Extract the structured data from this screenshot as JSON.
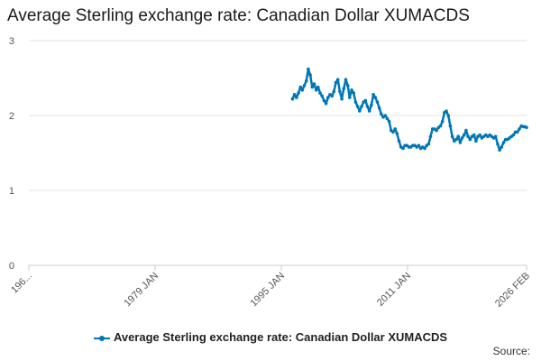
{
  "chart_data": {
    "type": "line",
    "title": "Average Sterling exchange rate: Canadian Dollar XUMACDS",
    "xlabel": "",
    "ylabel": "",
    "ylim": [
      0,
      3
    ],
    "xlim": [
      "1963-01",
      "2026-02"
    ],
    "y_ticks": [
      0,
      1,
      2,
      3
    ],
    "x_ticks": [
      {
        "label": "196...",
        "date": "1963-01"
      },
      {
        "label": "1979 JAN",
        "date": "1979-01"
      },
      {
        "label": "1995 JAN",
        "date": "1995-01"
      },
      {
        "label": "2011 JAN",
        "date": "2011-01"
      },
      {
        "label": "2026 FEB",
        "date": "2026-02"
      }
    ],
    "grid": "horizontal",
    "legend_position": "bottom",
    "color": "#0077b5",
    "series": [
      {
        "name": "Average Sterling exchange rate: Canadian Dollar XUMACDS",
        "points": [
          [
            "1996-06",
            2.22
          ],
          [
            "1996-09",
            2.28
          ],
          [
            "1996-12",
            2.24
          ],
          [
            "1997-03",
            2.3
          ],
          [
            "1997-06",
            2.38
          ],
          [
            "1997-09",
            2.34
          ],
          [
            "1997-12",
            2.4
          ],
          [
            "1998-03",
            2.46
          ],
          [
            "1998-06",
            2.62
          ],
          [
            "1998-09",
            2.54
          ],
          [
            "1998-12",
            2.38
          ],
          [
            "1999-03",
            2.42
          ],
          [
            "1999-06",
            2.34
          ],
          [
            "1999-09",
            2.38
          ],
          [
            "1999-12",
            2.3
          ],
          [
            "2000-03",
            2.26
          ],
          [
            "2000-06",
            2.2
          ],
          [
            "2000-09",
            2.16
          ],
          [
            "2000-12",
            2.24
          ],
          [
            "2001-03",
            2.28
          ],
          [
            "2001-06",
            2.26
          ],
          [
            "2001-09",
            2.32
          ],
          [
            "2001-12",
            2.44
          ],
          [
            "2002-03",
            2.48
          ],
          [
            "2002-06",
            2.32
          ],
          [
            "2002-09",
            2.22
          ],
          [
            "2002-12",
            2.36
          ],
          [
            "2003-03",
            2.48
          ],
          [
            "2003-06",
            2.4
          ],
          [
            "2003-09",
            2.24
          ],
          [
            "2003-12",
            2.34
          ],
          [
            "2004-03",
            2.3
          ],
          [
            "2004-06",
            2.18
          ],
          [
            "2004-09",
            2.12
          ],
          [
            "2004-12",
            2.06
          ],
          [
            "2005-03",
            2.12
          ],
          [
            "2005-06",
            2.18
          ],
          [
            "2005-09",
            2.2
          ],
          [
            "2005-12",
            2.12
          ],
          [
            "2006-03",
            2.06
          ],
          [
            "2006-06",
            2.14
          ],
          [
            "2006-09",
            2.28
          ],
          [
            "2006-12",
            2.24
          ],
          [
            "2007-03",
            2.18
          ],
          [
            "2007-06",
            2.1
          ],
          [
            "2007-09",
            2.02
          ],
          [
            "2007-12",
            1.98
          ],
          [
            "2008-03",
            2.0
          ],
          [
            "2008-06",
            1.96
          ],
          [
            "2008-09",
            1.92
          ],
          [
            "2008-12",
            1.8
          ],
          [
            "2009-03",
            1.78
          ],
          [
            "2009-06",
            1.82
          ],
          [
            "2009-09",
            1.76
          ],
          [
            "2009-12",
            1.66
          ],
          [
            "2010-03",
            1.58
          ],
          [
            "2010-06",
            1.56
          ],
          [
            "2010-09",
            1.6
          ],
          [
            "2010-12",
            1.6
          ],
          [
            "2011-03",
            1.58
          ],
          [
            "2011-06",
            1.58
          ],
          [
            "2011-09",
            1.6
          ],
          [
            "2011-12",
            1.6
          ],
          [
            "2012-03",
            1.58
          ],
          [
            "2012-06",
            1.6
          ],
          [
            "2012-09",
            1.56
          ],
          [
            "2012-12",
            1.58
          ],
          [
            "2013-03",
            1.56
          ],
          [
            "2013-06",
            1.6
          ],
          [
            "2013-09",
            1.62
          ],
          [
            "2013-12",
            1.72
          ],
          [
            "2014-03",
            1.82
          ],
          [
            "2014-06",
            1.82
          ],
          [
            "2014-09",
            1.8
          ],
          [
            "2014-12",
            1.84
          ],
          [
            "2015-03",
            1.86
          ],
          [
            "2015-06",
            1.92
          ],
          [
            "2015-09",
            2.04
          ],
          [
            "2015-12",
            2.06
          ],
          [
            "2016-03",
            2.0
          ],
          [
            "2016-06",
            1.86
          ],
          [
            "2016-09",
            1.72
          ],
          [
            "2016-12",
            1.66
          ],
          [
            "2017-03",
            1.68
          ],
          [
            "2017-06",
            1.72
          ],
          [
            "2017-09",
            1.64
          ],
          [
            "2017-12",
            1.7
          ],
          [
            "2018-03",
            1.74
          ],
          [
            "2018-06",
            1.8
          ],
          [
            "2018-09",
            1.72
          ],
          [
            "2018-12",
            1.68
          ],
          [
            "2019-03",
            1.72
          ],
          [
            "2019-06",
            1.74
          ],
          [
            "2019-09",
            1.66
          ],
          [
            "2019-12",
            1.72
          ],
          [
            "2020-03",
            1.74
          ],
          [
            "2020-06",
            1.7
          ],
          [
            "2020-09",
            1.72
          ],
          [
            "2020-12",
            1.74
          ],
          [
            "2021-03",
            1.72
          ],
          [
            "2021-06",
            1.74
          ],
          [
            "2021-09",
            1.72
          ],
          [
            "2021-12",
            1.7
          ],
          [
            "2022-03",
            1.72
          ],
          [
            "2022-06",
            1.62
          ],
          [
            "2022-09",
            1.54
          ],
          [
            "2022-12",
            1.58
          ],
          [
            "2023-03",
            1.64
          ],
          [
            "2023-06",
            1.68
          ],
          [
            "2023-09",
            1.68
          ],
          [
            "2023-12",
            1.7
          ],
          [
            "2024-03",
            1.72
          ],
          [
            "2024-06",
            1.74
          ],
          [
            "2024-09",
            1.78
          ],
          [
            "2024-12",
            1.78
          ],
          [
            "2025-03",
            1.82
          ],
          [
            "2025-06",
            1.86
          ],
          [
            "2025-09",
            1.85
          ],
          [
            "2025-12",
            1.85
          ],
          [
            "2026-02",
            1.84
          ]
        ]
      }
    ],
    "source_label": "Source:"
  }
}
